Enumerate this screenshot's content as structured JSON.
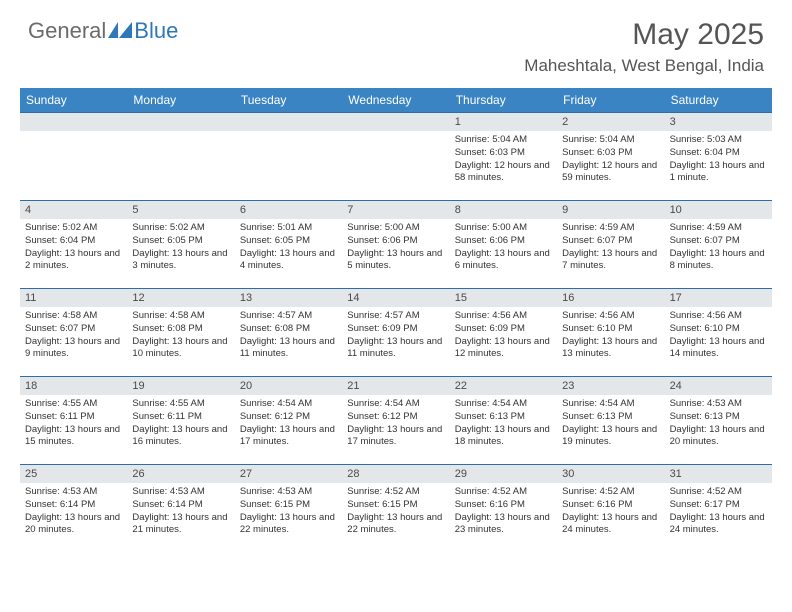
{
  "brand": {
    "general": "General",
    "blue": "Blue"
  },
  "title": "May 2025",
  "location": "Maheshtala, West Bengal, India",
  "colors": {
    "header_bg": "#3b84c4",
    "daynum_bg": "#e4e7ea",
    "rule": "#2e6ea5",
    "brand_blue": "#2e77b8",
    "brand_grey": "#6b6b6b"
  },
  "weekdays": [
    "Sunday",
    "Monday",
    "Tuesday",
    "Wednesday",
    "Thursday",
    "Friday",
    "Saturday"
  ],
  "startOffset": 4,
  "days": [
    {
      "n": 1,
      "sr": "5:04 AM",
      "ss": "6:03 PM",
      "dl": "12 hours and 58 minutes."
    },
    {
      "n": 2,
      "sr": "5:04 AM",
      "ss": "6:03 PM",
      "dl": "12 hours and 59 minutes."
    },
    {
      "n": 3,
      "sr": "5:03 AM",
      "ss": "6:04 PM",
      "dl": "13 hours and 1 minute."
    },
    {
      "n": 4,
      "sr": "5:02 AM",
      "ss": "6:04 PM",
      "dl": "13 hours and 2 minutes."
    },
    {
      "n": 5,
      "sr": "5:02 AM",
      "ss": "6:05 PM",
      "dl": "13 hours and 3 minutes."
    },
    {
      "n": 6,
      "sr": "5:01 AM",
      "ss": "6:05 PM",
      "dl": "13 hours and 4 minutes."
    },
    {
      "n": 7,
      "sr": "5:00 AM",
      "ss": "6:06 PM",
      "dl": "13 hours and 5 minutes."
    },
    {
      "n": 8,
      "sr": "5:00 AM",
      "ss": "6:06 PM",
      "dl": "13 hours and 6 minutes."
    },
    {
      "n": 9,
      "sr": "4:59 AM",
      "ss": "6:07 PM",
      "dl": "13 hours and 7 minutes."
    },
    {
      "n": 10,
      "sr": "4:59 AM",
      "ss": "6:07 PM",
      "dl": "13 hours and 8 minutes."
    },
    {
      "n": 11,
      "sr": "4:58 AM",
      "ss": "6:07 PM",
      "dl": "13 hours and 9 minutes."
    },
    {
      "n": 12,
      "sr": "4:58 AM",
      "ss": "6:08 PM",
      "dl": "13 hours and 10 minutes."
    },
    {
      "n": 13,
      "sr": "4:57 AM",
      "ss": "6:08 PM",
      "dl": "13 hours and 11 minutes."
    },
    {
      "n": 14,
      "sr": "4:57 AM",
      "ss": "6:09 PM",
      "dl": "13 hours and 11 minutes."
    },
    {
      "n": 15,
      "sr": "4:56 AM",
      "ss": "6:09 PM",
      "dl": "13 hours and 12 minutes."
    },
    {
      "n": 16,
      "sr": "4:56 AM",
      "ss": "6:10 PM",
      "dl": "13 hours and 13 minutes."
    },
    {
      "n": 17,
      "sr": "4:56 AM",
      "ss": "6:10 PM",
      "dl": "13 hours and 14 minutes."
    },
    {
      "n": 18,
      "sr": "4:55 AM",
      "ss": "6:11 PM",
      "dl": "13 hours and 15 minutes."
    },
    {
      "n": 19,
      "sr": "4:55 AM",
      "ss": "6:11 PM",
      "dl": "13 hours and 16 minutes."
    },
    {
      "n": 20,
      "sr": "4:54 AM",
      "ss": "6:12 PM",
      "dl": "13 hours and 17 minutes."
    },
    {
      "n": 21,
      "sr": "4:54 AM",
      "ss": "6:12 PM",
      "dl": "13 hours and 17 minutes."
    },
    {
      "n": 22,
      "sr": "4:54 AM",
      "ss": "6:13 PM",
      "dl": "13 hours and 18 minutes."
    },
    {
      "n": 23,
      "sr": "4:54 AM",
      "ss": "6:13 PM",
      "dl": "13 hours and 19 minutes."
    },
    {
      "n": 24,
      "sr": "4:53 AM",
      "ss": "6:13 PM",
      "dl": "13 hours and 20 minutes."
    },
    {
      "n": 25,
      "sr": "4:53 AM",
      "ss": "6:14 PM",
      "dl": "13 hours and 20 minutes."
    },
    {
      "n": 26,
      "sr": "4:53 AM",
      "ss": "6:14 PM",
      "dl": "13 hours and 21 minutes."
    },
    {
      "n": 27,
      "sr": "4:53 AM",
      "ss": "6:15 PM",
      "dl": "13 hours and 22 minutes."
    },
    {
      "n": 28,
      "sr": "4:52 AM",
      "ss": "6:15 PM",
      "dl": "13 hours and 22 minutes."
    },
    {
      "n": 29,
      "sr": "4:52 AM",
      "ss": "6:16 PM",
      "dl": "13 hours and 23 minutes."
    },
    {
      "n": 30,
      "sr": "4:52 AM",
      "ss": "6:16 PM",
      "dl": "13 hours and 24 minutes."
    },
    {
      "n": 31,
      "sr": "4:52 AM",
      "ss": "6:17 PM",
      "dl": "13 hours and 24 minutes."
    }
  ],
  "labels": {
    "sunrise": "Sunrise:",
    "sunset": "Sunset:",
    "daylight": "Daylight:"
  }
}
